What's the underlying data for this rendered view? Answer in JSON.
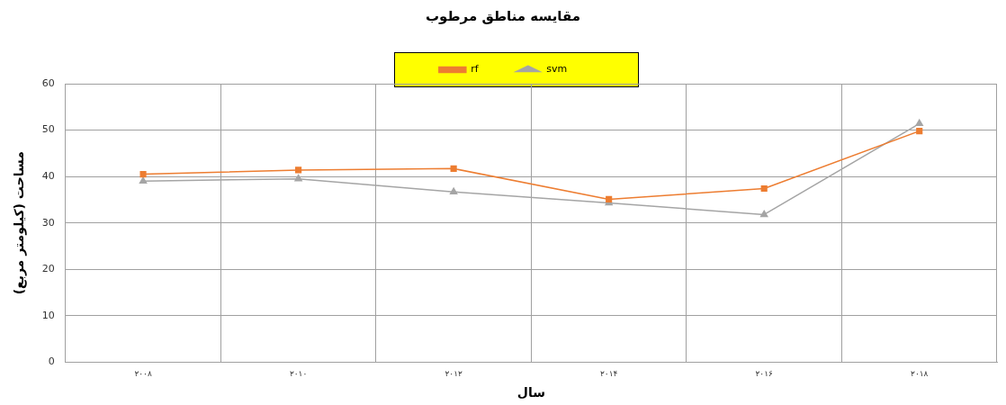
{
  "chart_data": {
    "type": "line",
    "title": "مقایسه مناطق مرطوب",
    "xlabel": "سال",
    "ylabel": "مساحت (کیلومتر مربع)",
    "categories": [
      "۲۰۰۸",
      "۲۰۱۰",
      "۲۰۱۲",
      "۲۰۱۴",
      "۲۰۱۶",
      "۲۰۱۸"
    ],
    "series": [
      {
        "name": "rf",
        "color": "#ed7d31",
        "marker": "square",
        "values": [
          40.5,
          41.4,
          41.7,
          35.1,
          37.4,
          49.8
        ]
      },
      {
        "name": "svm",
        "color": "#a5a5a5",
        "marker": "triangle",
        "values": [
          39.0,
          39.5,
          36.7,
          34.3,
          31.8,
          51.4
        ]
      }
    ],
    "ylim": [
      0,
      60
    ],
    "yticks": [
      0,
      10,
      20,
      30,
      40,
      50,
      60
    ],
    "grid": true,
    "legend": "top"
  }
}
